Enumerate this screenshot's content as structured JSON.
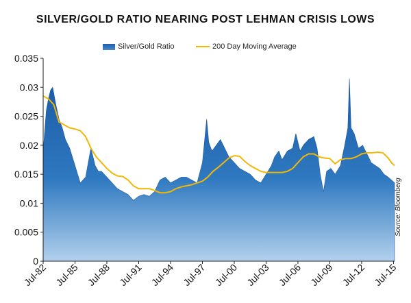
{
  "chart_data": {
    "type": "area",
    "title": "SILVER/GOLD RATIO NEARING POST LEHMAN CRISIS LOWS",
    "xlabel": "",
    "ylabel": "",
    "x_ticks": [
      "Jul-82",
      "Jul-85",
      "Jul-88",
      "Jul-91",
      "Jul-94",
      "Jul-97",
      "Jul-00",
      "Jul-03",
      "Jul-06",
      "Jul-09",
      "Jul-12",
      "Jul-15"
    ],
    "y_ticks": [
      "0",
      "0.005",
      "0.01",
      "0.015",
      "0.02",
      "0.025",
      "0.03",
      "0.035"
    ],
    "ylim": [
      0,
      0.035
    ],
    "xlim": [
      1982.5,
      2015.6
    ],
    "grid": false,
    "legend_position": "top-center",
    "colors": {
      "area_top": "#1a5aa6",
      "area_bottom": "#a9c8e8",
      "moving_average": "#f2b705"
    },
    "source": "Source: Bloomberg",
    "series": [
      {
        "name": "Silver/Gold Ratio",
        "kind": "area",
        "x": [
          1982.5,
          1982.8,
          1983.0,
          1983.2,
          1983.4,
          1983.7,
          1984.0,
          1984.3,
          1984.6,
          1985.0,
          1985.5,
          1986.0,
          1986.5,
          1987.0,
          1987.4,
          1987.7,
          1988.0,
          1988.5,
          1989.0,
          1989.5,
          1990.0,
          1990.5,
          1991.0,
          1991.5,
          1992.0,
          1992.5,
          1993.0,
          1993.5,
          1994.0,
          1994.5,
          1995.0,
          1995.5,
          1996.0,
          1996.5,
          1997.0,
          1997.5,
          1997.9,
          1998.1,
          1998.4,
          1998.8,
          1999.2,
          1999.6,
          2000.0,
          2000.5,
          2001.0,
          2001.5,
          2002.0,
          2002.5,
          2003.0,
          2003.5,
          2004.0,
          2004.3,
          2004.7,
          2005.0,
          2005.5,
          2006.0,
          2006.3,
          2006.7,
          2007.0,
          2007.5,
          2008.0,
          2008.3,
          2008.6,
          2008.9,
          2009.2,
          2009.6,
          2010.0,
          2010.5,
          2010.9,
          2011.2,
          2011.35,
          2011.5,
          2011.8,
          2012.2,
          2012.6,
          2013.0,
          2013.4,
          2013.8,
          2014.2,
          2014.6,
          2015.0,
          2015.3,
          2015.6
        ],
        "values": [
          0.019,
          0.026,
          0.028,
          0.0295,
          0.03,
          0.027,
          0.0245,
          0.023,
          0.021,
          0.0195,
          0.0165,
          0.0135,
          0.0145,
          0.0195,
          0.0165,
          0.0155,
          0.0155,
          0.0145,
          0.0135,
          0.0125,
          0.012,
          0.0115,
          0.0105,
          0.0112,
          0.0115,
          0.0112,
          0.012,
          0.014,
          0.0145,
          0.0135,
          0.014,
          0.0145,
          0.0145,
          0.014,
          0.0135,
          0.017,
          0.0245,
          0.0205,
          0.019,
          0.02,
          0.021,
          0.0195,
          0.018,
          0.017,
          0.016,
          0.0155,
          0.015,
          0.014,
          0.0135,
          0.015,
          0.0165,
          0.018,
          0.019,
          0.0175,
          0.019,
          0.0195,
          0.022,
          0.019,
          0.02,
          0.021,
          0.0215,
          0.0195,
          0.015,
          0.012,
          0.0155,
          0.016,
          0.015,
          0.0165,
          0.02,
          0.023,
          0.0315,
          0.023,
          0.022,
          0.0195,
          0.02,
          0.0185,
          0.017,
          0.0165,
          0.016,
          0.015,
          0.0145,
          0.014,
          0.0135
        ]
      },
      {
        "name": "200 Day Moving Average",
        "kind": "line",
        "x": [
          1982.5,
          1983.0,
          1983.5,
          1984.0,
          1984.5,
          1985.0,
          1985.5,
          1986.0,
          1986.5,
          1987.0,
          1987.5,
          1988.0,
          1988.5,
          1989.0,
          1989.5,
          1990.0,
          1990.5,
          1991.0,
          1991.5,
          1992.0,
          1992.5,
          1993.0,
          1993.5,
          1994.0,
          1994.5,
          1995.0,
          1995.5,
          1996.0,
          1996.5,
          1997.0,
          1997.5,
          1998.0,
          1998.5,
          1999.0,
          1999.5,
          2000.0,
          2000.5,
          2001.0,
          2001.5,
          2002.0,
          2002.5,
          2003.0,
          2003.5,
          2004.0,
          2004.5,
          2005.0,
          2005.5,
          2006.0,
          2006.5,
          2007.0,
          2007.5,
          2008.0,
          2008.5,
          2009.0,
          2009.5,
          2010.0,
          2010.5,
          2011.0,
          2011.5,
          2012.0,
          2012.5,
          2013.0,
          2013.5,
          2014.0,
          2014.5,
          2015.0,
          2015.3,
          2015.6
        ],
        "values": [
          0.0285,
          0.028,
          0.027,
          0.024,
          0.0235,
          0.023,
          0.0228,
          0.0225,
          0.0215,
          0.0195,
          0.018,
          0.017,
          0.016,
          0.0152,
          0.0147,
          0.0146,
          0.014,
          0.013,
          0.0125,
          0.0125,
          0.0125,
          0.0122,
          0.0118,
          0.0118,
          0.012,
          0.0125,
          0.0128,
          0.013,
          0.0132,
          0.0135,
          0.0138,
          0.0145,
          0.0155,
          0.0162,
          0.017,
          0.0178,
          0.0182,
          0.0181,
          0.0172,
          0.0165,
          0.016,
          0.0155,
          0.0153,
          0.0153,
          0.0153,
          0.0153,
          0.0155,
          0.016,
          0.017,
          0.018,
          0.0185,
          0.0185,
          0.018,
          0.0178,
          0.0177,
          0.0168,
          0.0175,
          0.0177,
          0.0177,
          0.018,
          0.0185,
          0.0187,
          0.0187,
          0.0188,
          0.0187,
          0.0178,
          0.017,
          0.0165
        ]
      }
    ]
  }
}
